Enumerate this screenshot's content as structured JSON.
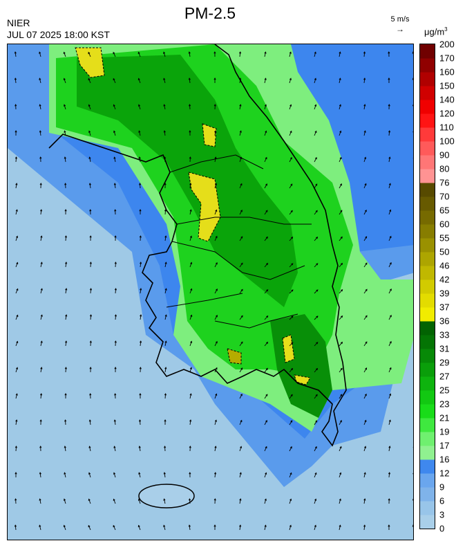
{
  "header": {
    "title": "PM-2.5",
    "agency": "NIER",
    "timestamp": "JUL 07 2025 18:00 KST",
    "wind_reference": "5 m/s",
    "wind_reference_arrow": "→",
    "unit_base": "μg/m",
    "unit_exp": "3"
  },
  "legend": {
    "levels": [
      "0",
      "3",
      "6",
      "9",
      "12",
      "16",
      "17",
      "19",
      "21",
      "23",
      "25",
      "27",
      "29",
      "31",
      "33",
      "36",
      "37",
      "39",
      "42",
      "46",
      "50",
      "55",
      "60",
      "65",
      "70",
      "76",
      "80",
      "90",
      "100",
      "110",
      "120",
      "140",
      "150",
      "160",
      "170",
      "200"
    ],
    "colors": [
      "#a9cfe9",
      "#98c5e9",
      "#7fb3ea",
      "#6aa6ee",
      "#3f88ee",
      "#90f190",
      "#6ff06f",
      "#3fe83f",
      "#19dc19",
      "#12c812",
      "#0eb30e",
      "#0a9e0a",
      "#078907",
      "#047404",
      "#026302",
      "#f1ec00",
      "#e3dc00",
      "#d2cb00",
      "#c0b800",
      "#ada500",
      "#9a9100",
      "#877d00",
      "#766a00",
      "#675a00",
      "#574a00",
      "#ff9393",
      "#ff7676",
      "#ff5a5a",
      "#ff3a3a",
      "#ff1414",
      "#f00000",
      "#d00000",
      "#b00000",
      "#900000",
      "#700000"
    ]
  },
  "map": {
    "description_free": "",
    "base_color": "#9fc9e6",
    "land_color": "#1fc61f",
    "hotspot_color": "#e5de1a"
  }
}
